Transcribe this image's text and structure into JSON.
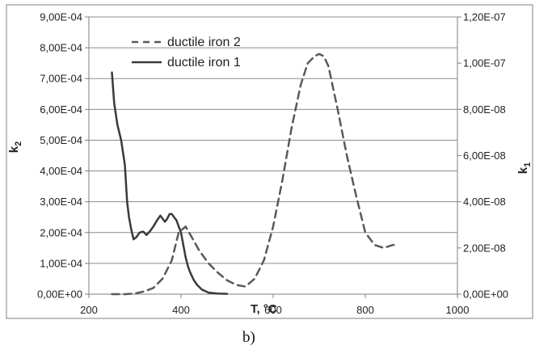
{
  "chart_data": {
    "type": "line",
    "xlabel": "T, °C",
    "ylabel_left_main": "k",
    "ylabel_left_sub": "2",
    "ylabel_right_main": "k",
    "ylabel_right_sub": "1",
    "caption": "b)",
    "xlim": [
      200,
      1000
    ],
    "ylim_left": [
      0,
      0.0009
    ],
    "ylim_right": [
      0,
      1.2e-07
    ],
    "x_ticks": [
      "200",
      "400",
      "600",
      "800",
      "1000"
    ],
    "x_tick_values": [
      200,
      400,
      600,
      800,
      1000
    ],
    "y_left_ticks": [
      "0,00E+00",
      "1,00E-04",
      "2,00E-04",
      "3,00E-04",
      "4,00E-04",
      "5,00E-04",
      "6,00E-04",
      "7,00E-04",
      "8,00E-04",
      "9,00E-04"
    ],
    "y_left_tick_values": [
      0,
      0.0001,
      0.0002,
      0.0003,
      0.0004,
      0.0005,
      0.0006,
      0.0007,
      0.0008,
      0.0009
    ],
    "y_right_ticks": [
      "0,00E+00",
      "2,00E-08",
      "4,00E-08",
      "6,00E-08",
      "8,00E-08",
      "1,00E-07",
      "1,20E-07"
    ],
    "y_right_tick_values": [
      0,
      2e-08,
      4e-08,
      6e-08,
      8e-08,
      1e-07,
      1.2e-07
    ],
    "grid": "horizontal",
    "legend_position": "top-left",
    "series": [
      {
        "name": "ductile iron 2",
        "axis": "right",
        "style": "dashed",
        "color": "#595959",
        "x": [
          250,
          280,
          300,
          320,
          340,
          360,
          380,
          395,
          410,
          425,
          440,
          460,
          480,
          500,
          520,
          540,
          560,
          580,
          600,
          620,
          640,
          660,
          675,
          690,
          700,
          710,
          720,
          740,
          760,
          780,
          800,
          820,
          840,
          860,
          870
        ],
        "y": [
          0,
          0,
          3e-10,
          1.2e-09,
          2.7e-09,
          6.7e-09,
          1.47e-08,
          2.67e-08,
          2.93e-08,
          2.4e-08,
          1.87e-08,
          1.33e-08,
          9.3e-09,
          6e-09,
          4e-09,
          3.3e-09,
          6.7e-09,
          1.47e-08,
          2.93e-08,
          4.93e-08,
          7.2e-08,
          9.07e-08,
          1e-07,
          1.03e-07,
          1.04e-07,
          1.03e-07,
          9.87e-08,
          8e-08,
          6e-08,
          4.27e-08,
          2.67e-08,
          2.13e-08,
          2e-08,
          2.13e-08,
          2.13e-08
        ]
      },
      {
        "name": "ductile iron 1",
        "axis": "left",
        "style": "solid",
        "color": "#3a3a3a",
        "x": [
          250,
          255,
          262,
          270,
          278,
          283,
          287,
          292,
          297,
          303,
          310,
          318,
          325,
          333,
          340,
          348,
          355,
          360,
          365,
          370,
          375,
          380,
          385,
          390,
          395,
          400,
          405,
          410,
          415,
          420,
          428,
          435,
          445,
          460,
          480,
          500
        ],
        "y": [
          0.00072,
          0.00062,
          0.00055,
          0.0005,
          0.00042,
          0.0003,
          0.00025,
          0.00021,
          0.000178,
          0.000185,
          0.0002,
          0.000203,
          0.000192,
          0.000205,
          0.00022,
          0.00024,
          0.000255,
          0.000245,
          0.000235,
          0.000245,
          0.00026,
          0.00026,
          0.00025,
          0.00024,
          0.00022,
          0.0002,
          0.00016,
          0.00012,
          9e-05,
          7e-05,
          4.5e-05,
          3e-05,
          1.5e-05,
          5e-06,
          2e-06,
          1e-06
        ]
      }
    ]
  }
}
